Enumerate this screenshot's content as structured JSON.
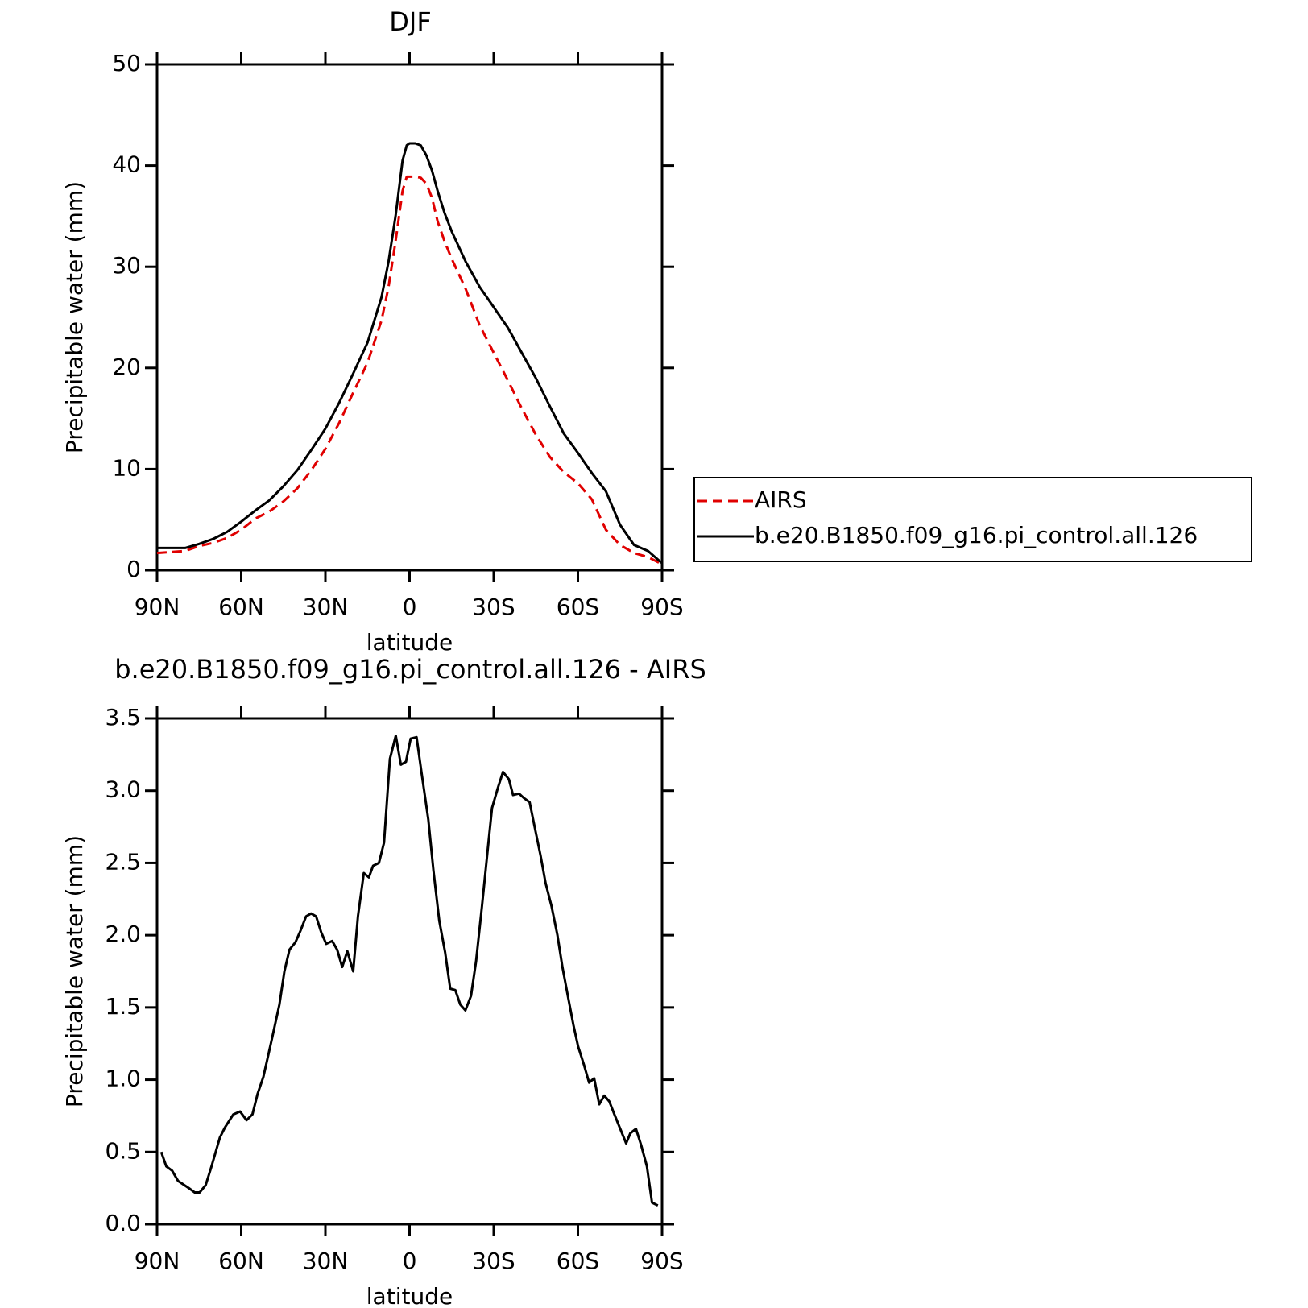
{
  "chart_data": [
    {
      "type": "line",
      "title": "DJF",
      "x_label": "latitude",
      "y_label": "Precipitable water (mm)",
      "xlim": [
        90,
        -90
      ],
      "xticks": [
        {
          "value": 90,
          "label": "90N"
        },
        {
          "value": 60,
          "label": "60N"
        },
        {
          "value": 30,
          "label": "30N"
        },
        0,
        {
          "value": -30,
          "label": "30S"
        },
        {
          "value": -60,
          "label": "60S"
        },
        {
          "value": -90,
          "label": "90S"
        }
      ],
      "ylim": [
        0,
        50
      ],
      "yticks": [
        0,
        10,
        20,
        30,
        40,
        50
      ],
      "legend": true,
      "x": [
        90,
        85,
        80,
        75,
        70,
        65,
        60,
        55,
        50,
        45,
        40,
        35,
        30,
        25,
        20,
        15,
        10,
        7.5,
        5,
        2.5,
        1,
        0,
        -2,
        -4,
        -6,
        -8,
        -10,
        -12.5,
        -15,
        -20,
        -25,
        -30,
        -35,
        -40,
        -45,
        -50,
        -55,
        -60,
        -65,
        -70,
        -75,
        -80,
        -85,
        -90
      ],
      "series": [
        {
          "name": "AIRS",
          "color": "#e00000",
          "dashed": true,
          "values": [
            1.7,
            1.8,
            1.9,
            2.4,
            2.7,
            3.2,
            4.0,
            5.1,
            5.8,
            6.8,
            8.1,
            9.9,
            12.0,
            14.6,
            17.6,
            20.5,
            24.7,
            28.0,
            32.5,
            37.5,
            38.9,
            38.9,
            38.9,
            38.8,
            38.2,
            36.8,
            34.5,
            32.5,
            30.8,
            27.8,
            24.2,
            21.5,
            18.8,
            16.0,
            13.4,
            11.2,
            9.7,
            8.6,
            7.0,
            4.0,
            2.5,
            1.7,
            1.3,
            0.6
          ]
        },
        {
          "name": "b.e20.B1850.f09_g16.pi_control.all.126",
          "color": "#000000",
          "dashed": false,
          "values": [
            2.2,
            2.2,
            2.2,
            2.6,
            3.1,
            3.8,
            4.8,
            5.9,
            6.9,
            8.3,
            9.9,
            11.9,
            14.0,
            16.6,
            19.5,
            22.5,
            27.0,
            30.5,
            35.0,
            40.5,
            42.0,
            42.2,
            42.2,
            42.0,
            41.0,
            39.5,
            37.5,
            35.3,
            33.5,
            30.5,
            28.0,
            26.0,
            24.0,
            21.5,
            19.0,
            16.2,
            13.5,
            11.6,
            9.6,
            7.8,
            4.5,
            2.5,
            1.9,
            0.7
          ]
        }
      ]
    },
    {
      "type": "line",
      "title": "b.e20.B1850.f09_g16.pi_control.all.126 - AIRS",
      "x_label": "latitude",
      "y_label": "Precipitable water (mm)",
      "xlim": [
        90,
        -90
      ],
      "xticks": [
        {
          "value": 90,
          "label": "90N"
        },
        {
          "value": 60,
          "label": "60N"
        },
        {
          "value": 30,
          "label": "30N"
        },
        0,
        {
          "value": -30,
          "label": "30S"
        },
        {
          "value": -60,
          "label": "60S"
        },
        {
          "value": -90,
          "label": "90S"
        }
      ],
      "ylim": [
        0,
        3.5
      ],
      "yticks": [
        {
          "value": 0,
          "label": "0.0"
        },
        0.5,
        {
          "value": 1,
          "label": "1.0"
        },
        1.5,
        {
          "value": 2,
          "label": "2.0"
        },
        2.5,
        {
          "value": 3,
          "label": "3.0"
        },
        3.5
      ],
      "color": "#000000",
      "x": [
        88.5,
        86.7,
        84.6,
        82.5,
        78.7,
        76.6,
        74.8,
        72.7,
        70.6,
        67.6,
        65.8,
        62.8,
        60.4,
        58.1,
        56.0,
        54.2,
        52.1,
        49.1,
        46.4,
        44.6,
        42.8,
        40.7,
        38.9,
        36.9,
        35.1,
        33.3,
        31.5,
        29.7,
        27.6,
        25.8,
        24.0,
        22.2,
        20.1,
        18.4,
        16.3,
        14.5,
        13.0,
        10.9,
        9.1,
        7.0,
        4.9,
        3.1,
        1.3,
        -0.4,
        -2.5,
        -4.3,
        -6.7,
        -8.5,
        -10.6,
        -12.7,
        -14.5,
        -16.3,
        -18.1,
        -19.9,
        -21.9,
        -23.7,
        -25.8,
        -27.9,
        -29.4,
        -31.5,
        -33.3,
        -35.4,
        -36.9,
        -39.0,
        -40.7,
        -42.8,
        -44.9,
        -46.7,
        -48.5,
        -50.6,
        -52.7,
        -54.5,
        -56.6,
        -58.4,
        -60.1,
        -62.2,
        -64.0,
        -65.8,
        -67.6,
        -69.4,
        -71.2,
        -73.0,
        -75.1,
        -77.2,
        -78.7,
        -80.7,
        -82.5,
        -84.6,
        -86.4,
        -88.5
      ],
      "values": [
        0.5,
        0.4,
        0.37,
        0.3,
        0.25,
        0.22,
        0.22,
        0.27,
        0.4,
        0.6,
        0.67,
        0.76,
        0.78,
        0.72,
        0.76,
        0.9,
        1.02,
        1.28,
        1.52,
        1.75,
        1.9,
        1.95,
        2.03,
        2.13,
        2.15,
        2.13,
        2.02,
        1.94,
        1.96,
        1.9,
        1.78,
        1.89,
        1.75,
        2.13,
        2.43,
        2.4,
        2.48,
        2.5,
        2.64,
        3.22,
        3.38,
        3.18,
        3.2,
        3.36,
        3.37,
        3.12,
        2.8,
        2.45,
        2.1,
        1.88,
        1.63,
        1.62,
        1.52,
        1.48,
        1.58,
        1.82,
        2.2,
        2.6,
        2.88,
        3.02,
        3.13,
        3.08,
        2.97,
        2.98,
        2.95,
        2.92,
        2.72,
        2.55,
        2.36,
        2.2,
        2.0,
        1.78,
        1.56,
        1.38,
        1.23,
        1.1,
        0.98,
        1.01,
        0.83,
        0.89,
        0.85,
        0.76,
        0.66,
        0.56,
        0.63,
        0.66,
        0.55,
        0.4,
        0.15,
        0.13
      ]
    }
  ]
}
